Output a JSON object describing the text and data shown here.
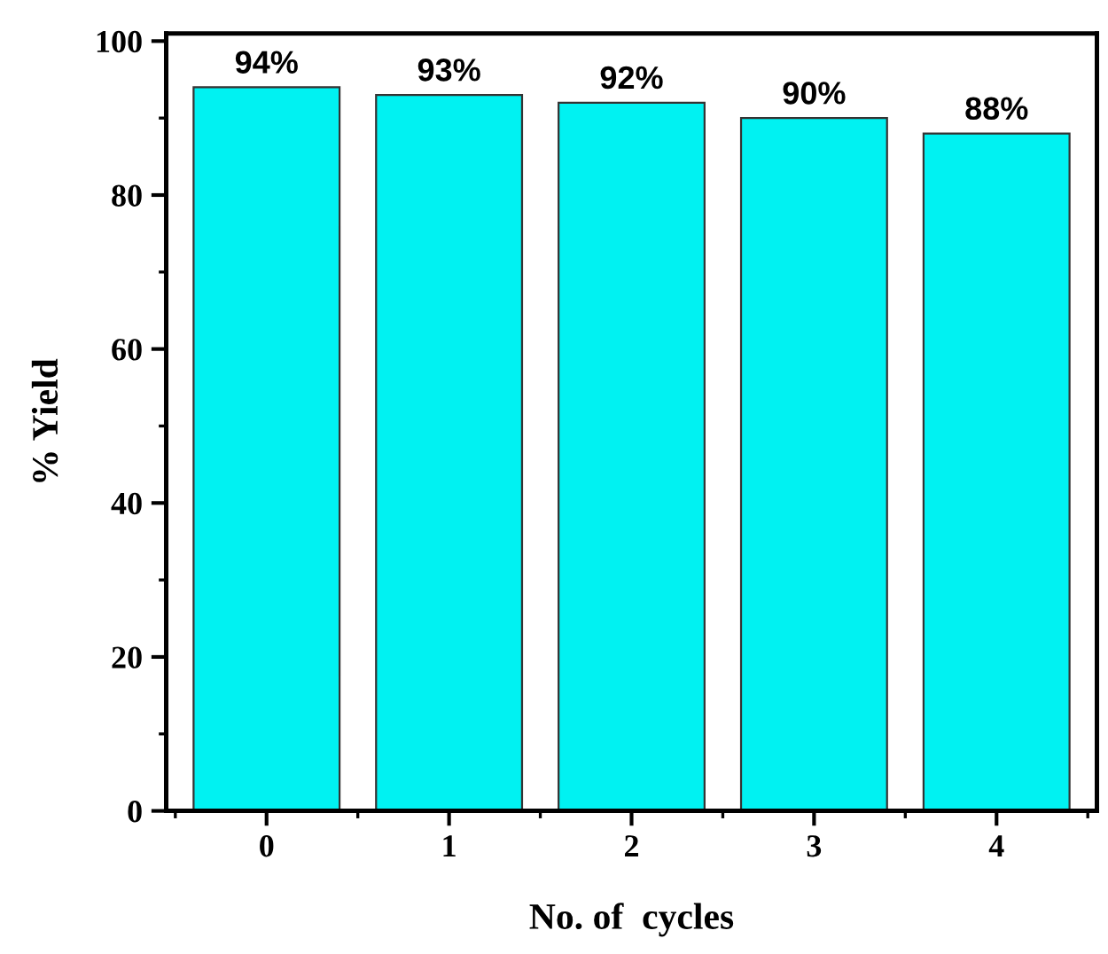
{
  "chart_data": {
    "type": "bar",
    "xlabel": "No. of  cycles",
    "ylabel": "% Yield",
    "categories": [
      "0",
      "1",
      "2",
      "3",
      "4"
    ],
    "values": [
      94,
      93,
      92,
      90,
      88
    ],
    "value_labels": [
      "94%",
      "93%",
      "92%",
      "90%",
      "88%"
    ],
    "color": "#00f2f2",
    "ylim": [
      0,
      101
    ],
    "yticks": [
      0,
      20,
      40,
      60,
      80,
      100
    ],
    "grid": false
  }
}
